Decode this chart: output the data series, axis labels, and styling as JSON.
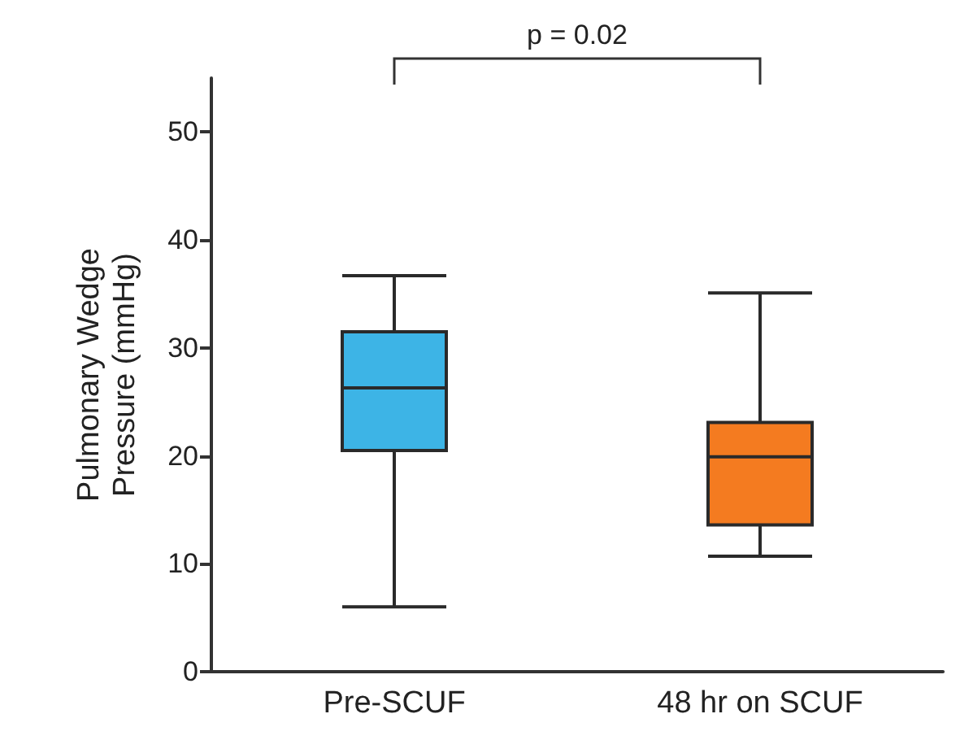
{
  "chart_data": {
    "type": "box",
    "ylabel": "Pulmonary Wedge Pressure (mmHg)",
    "categories": [
      "Pre-SCUF",
      "48 hr on SCUF"
    ],
    "colors": [
      "#3db4e6",
      "#f47b20"
    ],
    "boxes": [
      {
        "low": 6,
        "q1": 20.5,
        "median": 26.3,
        "q3": 31.5,
        "high": 36.7
      },
      {
        "low": 10.7,
        "q1": 13.6,
        "median": 19.9,
        "q3": 23.1,
        "high": 35.1
      }
    ],
    "ylim": [
      0,
      55
    ],
    "yticks": [
      0,
      10,
      20,
      30,
      40,
      50
    ],
    "annotations": [
      "p = 0.02"
    ],
    "grid": false
  }
}
